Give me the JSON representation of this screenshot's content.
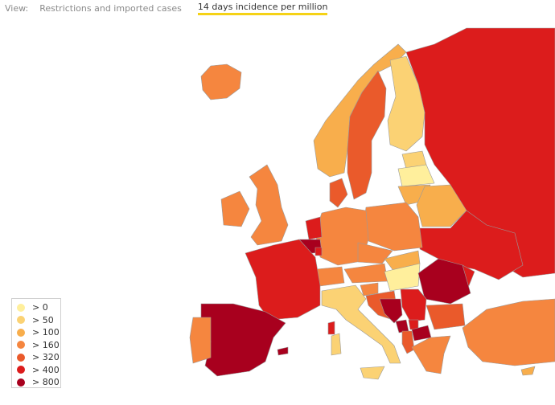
{
  "view_bar": {
    "label": "View:",
    "options": [
      {
        "label": "Restrictions and imported cases",
        "active": false
      },
      {
        "label": "14 days incidence per million",
        "active": true
      }
    ],
    "active_underline_color": "#f5d216"
  },
  "legend": {
    "items": [
      {
        "label": "> 0",
        "color": "#ffef9c"
      },
      {
        "label": "> 50",
        "color": "#fbd274"
      },
      {
        "label": "> 100",
        "color": "#f8ae4c"
      },
      {
        "label": "> 160",
        "color": "#f5863f"
      },
      {
        "label": "> 320",
        "color": "#ea5a2b"
      },
      {
        "label": "> 400",
        "color": "#dc1c1c"
      },
      {
        "label": "> 800",
        "color": "#a8001e"
      }
    ]
  },
  "map": {
    "border_color": "#9a9a9a",
    "background": "#ffffff"
  }
}
